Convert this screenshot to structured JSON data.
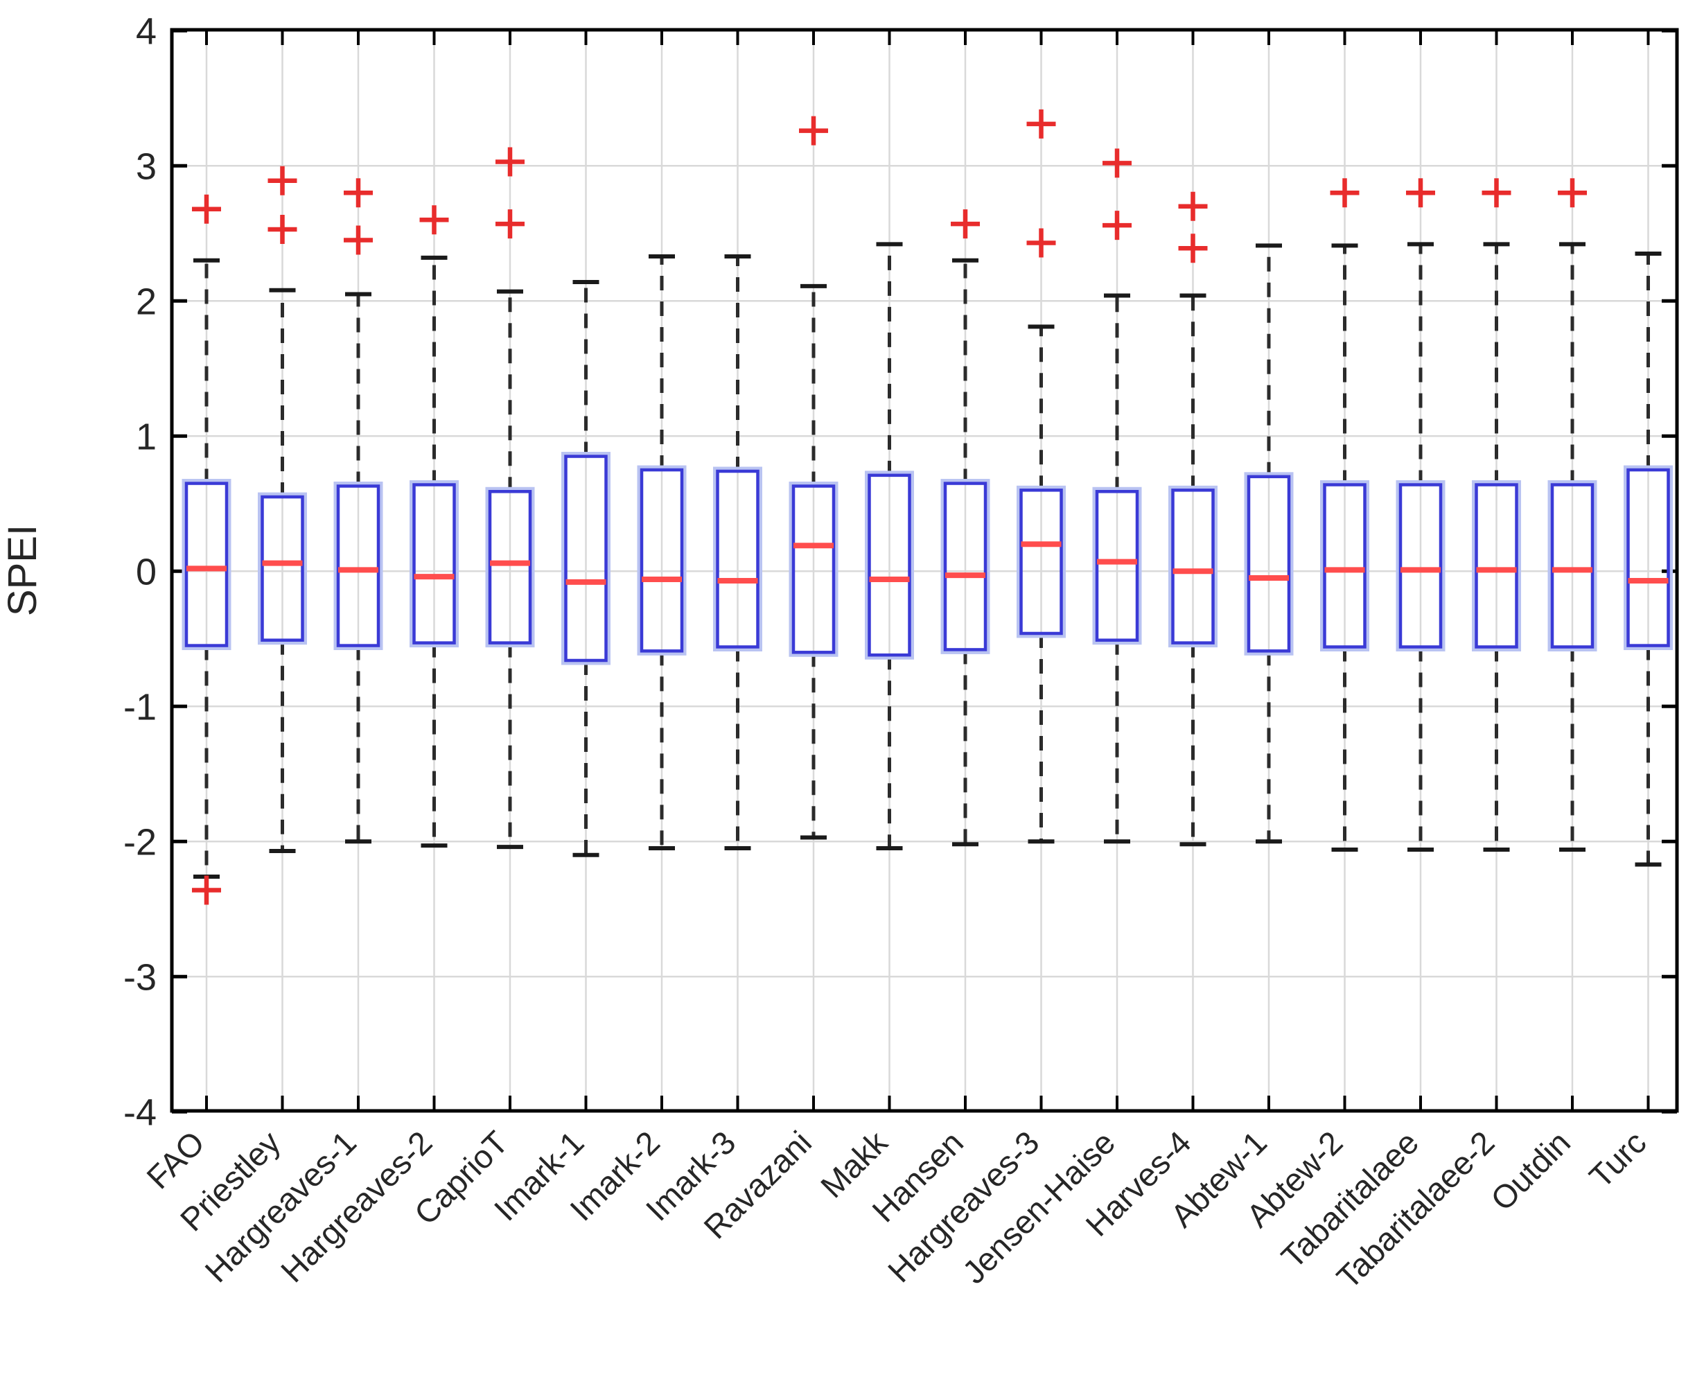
{
  "chart_data": {
    "type": "boxplot",
    "title": "",
    "xlabel": "",
    "ylabel": "SPEI",
    "ylim": [
      -4,
      4
    ],
    "yticks": [
      4,
      3,
      2,
      1,
      0,
      -1,
      -2,
      -3,
      -4
    ],
    "grid": true,
    "legend": "none",
    "box_orientation": "vertical",
    "colors": {
      "box_edge": "#3a3ad6",
      "box_halo": "#b9c3f2",
      "median": "#ff4d4d",
      "whisker": "#2b2b2b",
      "whisker_cap": "#1a1a1a",
      "outlier": "#e82c2c",
      "gridline": "#d9d9d9",
      "axis": "#000000",
      "background": "#ffffff"
    },
    "categories": [
      "FAO",
      "Priestley",
      "Hargreaves-1",
      "Hargreaves-2",
      "CaprioT",
      "Imark-1",
      "Imark-2",
      "Imark-3",
      "Ravazani",
      "Makk",
      "Hansen",
      "Hargreaves-3",
      "Jensen-Haise",
      "Harves-4",
      "Abtew-1",
      "Abtew-2",
      "Tabaritalaee",
      "Tabaritalaee-2",
      "Outdin",
      "Turc"
    ],
    "series": [
      {
        "name": "FAO",
        "whisker_low": -2.26,
        "q1": -0.55,
        "median": 0.02,
        "q3": 0.65,
        "whisker_high": 2.3,
        "outliers": [
          2.68,
          -2.36
        ]
      },
      {
        "name": "Priestley",
        "whisker_low": -2.07,
        "q1": -0.51,
        "median": 0.06,
        "q3": 0.55,
        "whisker_high": 2.08,
        "outliers": [
          2.89,
          2.53
        ]
      },
      {
        "name": "Hargreaves-1",
        "whisker_low": -2.0,
        "q1": -0.55,
        "median": 0.01,
        "q3": 0.63,
        "whisker_high": 2.05,
        "outliers": [
          2.8,
          2.45
        ]
      },
      {
        "name": "Hargreaves-2",
        "whisker_low": -2.03,
        "q1": -0.53,
        "median": -0.04,
        "q3": 0.64,
        "whisker_high": 2.32,
        "outliers": [
          2.6
        ]
      },
      {
        "name": "CaprioT",
        "whisker_low": -2.04,
        "q1": -0.53,
        "median": 0.06,
        "q3": 0.59,
        "whisker_high": 2.07,
        "outliers": [
          3.03,
          2.57
        ]
      },
      {
        "name": "Imark-1",
        "whisker_low": -2.1,
        "q1": -0.66,
        "median": -0.08,
        "q3": 0.85,
        "whisker_high": 2.14,
        "outliers": []
      },
      {
        "name": "Imark-2",
        "whisker_low": -2.05,
        "q1": -0.59,
        "median": -0.06,
        "q3": 0.75,
        "whisker_high": 2.33,
        "outliers": []
      },
      {
        "name": "Imark-3",
        "whisker_low": -2.05,
        "q1": -0.56,
        "median": -0.07,
        "q3": 0.74,
        "whisker_high": 2.33,
        "outliers": []
      },
      {
        "name": "Ravazani",
        "whisker_low": -1.97,
        "q1": -0.6,
        "median": 0.19,
        "q3": 0.63,
        "whisker_high": 2.11,
        "outliers": [
          3.26
        ]
      },
      {
        "name": "Makk",
        "whisker_low": -2.05,
        "q1": -0.62,
        "median": -0.06,
        "q3": 0.71,
        "whisker_high": 2.42,
        "outliers": []
      },
      {
        "name": "Hansen",
        "whisker_low": -2.02,
        "q1": -0.58,
        "median": -0.03,
        "q3": 0.65,
        "whisker_high": 2.3,
        "outliers": [
          2.57
        ]
      },
      {
        "name": "Hargreaves-3",
        "whisker_low": -2.0,
        "q1": -0.46,
        "median": 0.2,
        "q3": 0.6,
        "whisker_high": 1.81,
        "outliers": [
          3.31,
          2.43
        ]
      },
      {
        "name": "Jensen-Haise",
        "whisker_low": -2.0,
        "q1": -0.51,
        "median": 0.07,
        "q3": 0.59,
        "whisker_high": 2.04,
        "outliers": [
          3.02,
          2.56
        ]
      },
      {
        "name": "Harves-4",
        "whisker_low": -2.02,
        "q1": -0.53,
        "median": 0.0,
        "q3": 0.6,
        "whisker_high": 2.04,
        "outliers": [
          2.7,
          2.39
        ]
      },
      {
        "name": "Abtew-1",
        "whisker_low": -2.0,
        "q1": -0.59,
        "median": -0.05,
        "q3": 0.7,
        "whisker_high": 2.41,
        "outliers": []
      },
      {
        "name": "Abtew-2",
        "whisker_low": -2.06,
        "q1": -0.56,
        "median": 0.01,
        "q3": 0.64,
        "whisker_high": 2.41,
        "outliers": [
          2.8
        ]
      },
      {
        "name": "Tabaritalaee",
        "whisker_low": -2.06,
        "q1": -0.56,
        "median": 0.01,
        "q3": 0.64,
        "whisker_high": 2.42,
        "outliers": [
          2.8
        ]
      },
      {
        "name": "Tabaritalaee-2",
        "whisker_low": -2.06,
        "q1": -0.56,
        "median": 0.01,
        "q3": 0.64,
        "whisker_high": 2.42,
        "outliers": [
          2.8
        ]
      },
      {
        "name": "Outdin",
        "whisker_low": -2.06,
        "q1": -0.56,
        "median": 0.01,
        "q3": 0.64,
        "whisker_high": 2.42,
        "outliers": [
          2.8
        ]
      },
      {
        "name": "Turc",
        "whisker_low": -2.17,
        "q1": -0.55,
        "median": -0.07,
        "q3": 0.75,
        "whisker_high": 2.35,
        "outliers": []
      }
    ]
  }
}
